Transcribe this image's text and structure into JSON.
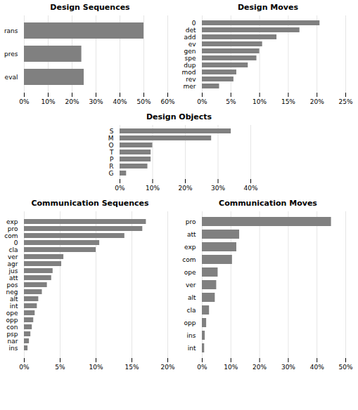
{
  "chart_data": [
    {
      "type": "bar",
      "orientation": "horizontal",
      "title": "Design Sequences",
      "categories": [
        "rans",
        "pres",
        "eval"
      ],
      "values": [
        50,
        24,
        25
      ],
      "color": "#808080",
      "xlim": [
        0,
        60
      ],
      "xticks": [
        {
          "value": 0,
          "label": "0%"
        },
        {
          "value": 10,
          "label": "10%"
        },
        {
          "value": 20,
          "label": "20%"
        },
        {
          "value": 30,
          "label": "30%"
        },
        {
          "value": 40,
          "label": "40%"
        },
        {
          "value": 50,
          "label": "50%"
        },
        {
          "value": 60,
          "label": "60%"
        }
      ],
      "grid": true
    },
    {
      "type": "bar",
      "orientation": "horizontal",
      "title": "Design Moves",
      "categories": [
        "0",
        "det",
        "add",
        "ev",
        "gen",
        "spe",
        "dup",
        "mod",
        "rev",
        "mer"
      ],
      "values": [
        20.5,
        17,
        13,
        10.5,
        10,
        9.5,
        8,
        6,
        5.5,
        3
      ],
      "color": "#808080",
      "xlim": [
        0,
        25
      ],
      "xticks": [
        {
          "value": 0,
          "label": "0%"
        },
        {
          "value": 5,
          "label": "5%"
        },
        {
          "value": 10,
          "label": "10%"
        },
        {
          "value": 15,
          "label": "15%"
        },
        {
          "value": 20,
          "label": "20%"
        },
        {
          "value": 25,
          "label": "25%"
        }
      ],
      "grid": true
    },
    {
      "type": "bar",
      "orientation": "horizontal",
      "title": "Design Objects",
      "categories": [
        "S",
        "M",
        "O",
        "T",
        "P",
        "R",
        "G"
      ],
      "values": [
        34,
        28,
        10,
        9.5,
        9.5,
        8.5,
        2
      ],
      "color": "#808080",
      "xlim": [
        0,
        40
      ],
      "xticks": [
        {
          "value": 0,
          "label": "0%"
        },
        {
          "value": 10,
          "label": "10%"
        },
        {
          "value": 20,
          "label": "20%"
        },
        {
          "value": 30,
          "label": "30%"
        },
        {
          "value": 40,
          "label": "40%"
        }
      ],
      "grid": true
    },
    {
      "type": "bar",
      "orientation": "horizontal",
      "title": "Communication Sequences",
      "categories": [
        "exp",
        "pro",
        "com",
        "0",
        "cla",
        "ver",
        "agr",
        "jus",
        "att",
        "pos",
        "neg",
        "alt",
        "int",
        "ope",
        "opp",
        "con",
        "psp",
        "nar",
        "ins"
      ],
      "values": [
        17.0,
        16.5,
        14.0,
        10.5,
        10.0,
        5.5,
        5.2,
        4.0,
        3.8,
        3.2,
        2.5,
        2.0,
        1.8,
        1.5,
        1.3,
        1.1,
        0.9,
        0.7,
        0.5
      ],
      "color": "#808080",
      "xlim": [
        0,
        20
      ],
      "xticks": [
        {
          "value": 0,
          "label": "0%"
        },
        {
          "value": 5,
          "label": "5%"
        },
        {
          "value": 10,
          "label": "10%"
        },
        {
          "value": 15,
          "label": "15%"
        },
        {
          "value": 20,
          "label": "20%"
        }
      ],
      "grid": true
    },
    {
      "type": "bar",
      "orientation": "horizontal",
      "title": "Communication Moves",
      "categories": [
        "pro",
        "att",
        "exp",
        "com",
        "ope",
        "ver",
        "alt",
        "cla",
        "opp",
        "ins",
        "int"
      ],
      "values": [
        45.0,
        13.0,
        12.0,
        10.5,
        5.5,
        5.0,
        4.5,
        2.5,
        1.5,
        1.0,
        0.8
      ],
      "color": "#808080",
      "xlim": [
        0,
        50
      ],
      "xticks": [
        {
          "value": 0,
          "label": "0%"
        },
        {
          "value": 10,
          "label": "10%"
        },
        {
          "value": 20,
          "label": "20%"
        },
        {
          "value": 30,
          "label": "30%"
        },
        {
          "value": 40,
          "label": "40%"
        },
        {
          "value": 50,
          "label": "50%"
        }
      ],
      "grid": true
    }
  ]
}
